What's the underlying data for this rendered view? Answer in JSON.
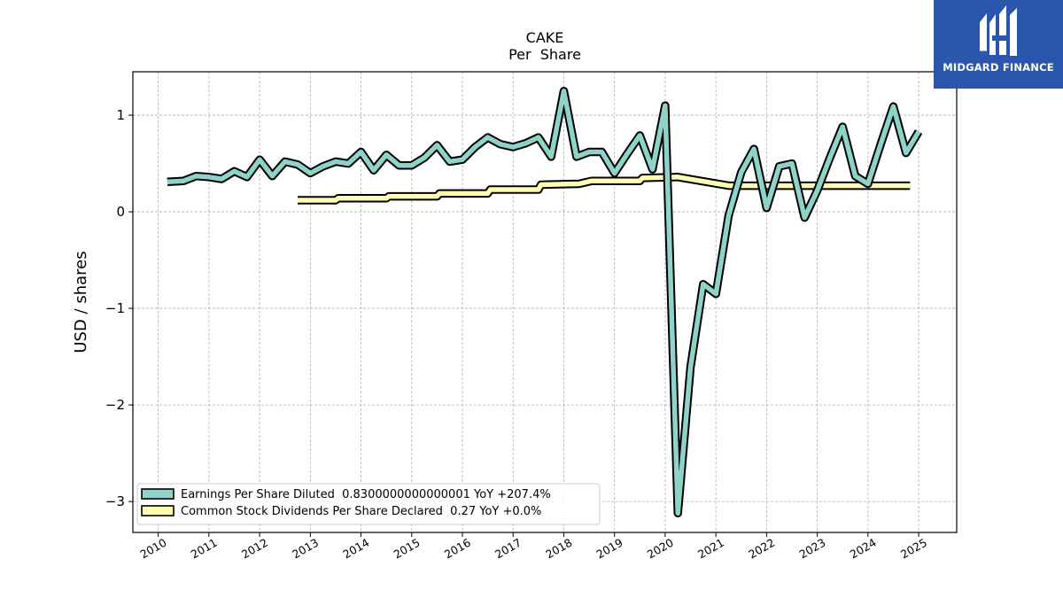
{
  "brand": {
    "name": "MIDGARD FINANCE",
    "color": "#2b56ad"
  },
  "chart_data": {
    "type": "line",
    "title": "CAKE",
    "subtitle": "Per  Share",
    "xlabel": "",
    "ylabel": "USD / shares",
    "xlim": [
      2009.5,
      2025.75
    ],
    "ylim": [
      -3.32,
      1.45
    ],
    "x_ticks": [
      2010,
      2011,
      2012,
      2013,
      2014,
      2015,
      2016,
      2017,
      2018,
      2019,
      2020,
      2021,
      2022,
      2023,
      2024,
      2025
    ],
    "x_tick_labels": [
      "2010",
      "2011",
      "2012",
      "2013",
      "2014",
      "2015",
      "2016",
      "2017",
      "2018",
      "2019",
      "2020",
      "2021",
      "2022",
      "2023",
      "2024",
      "2025"
    ],
    "y_ticks": [
      -3,
      -2,
      -1,
      0,
      1
    ],
    "y_tick_labels": [
      "−3",
      "−2",
      "−1",
      "0",
      "1"
    ],
    "grid": true,
    "legend_position": "lower-left",
    "series": [
      {
        "name": "Earnings Per Share Diluted  0.8300000000000001 YoY +207.4%",
        "color": "#8dd3c7",
        "x": [
          2010.18,
          2010.5,
          2010.75,
          2011.0,
          2011.25,
          2011.5,
          2011.75,
          2012.0,
          2012.25,
          2012.5,
          2012.75,
          2013.0,
          2013.25,
          2013.5,
          2013.75,
          2014.0,
          2014.25,
          2014.5,
          2014.75,
          2015.0,
          2015.25,
          2015.5,
          2015.75,
          2016.0,
          2016.25,
          2016.5,
          2016.75,
          2017.0,
          2017.25,
          2017.5,
          2017.75,
          2018.0,
          2018.25,
          2018.5,
          2018.75,
          2019.0,
          2019.25,
          2019.5,
          2019.75,
          2020.0,
          2020.25,
          2020.5,
          2020.75,
          2021.0,
          2021.25,
          2021.5,
          2021.75,
          2022.0,
          2022.25,
          2022.5,
          2022.75,
          2023.0,
          2023.25,
          2023.5,
          2023.75,
          2024.0,
          2024.25,
          2024.5,
          2024.75,
          2025.0
        ],
        "y": [
          0.31,
          0.32,
          0.37,
          0.36,
          0.34,
          0.42,
          0.36,
          0.54,
          0.37,
          0.52,
          0.49,
          0.4,
          0.47,
          0.52,
          0.5,
          0.62,
          0.43,
          0.59,
          0.48,
          0.48,
          0.56,
          0.69,
          0.52,
          0.54,
          0.67,
          0.77,
          0.7,
          0.67,
          0.71,
          0.77,
          0.57,
          1.25,
          0.57,
          0.62,
          0.62,
          0.4,
          0.6,
          0.79,
          0.44,
          1.1,
          -3.12,
          -1.61,
          -0.75,
          -0.85,
          -0.04,
          0.41,
          0.65,
          0.04,
          0.47,
          0.5,
          -0.06,
          0.22,
          0.56,
          0.88,
          0.37,
          0.29,
          0.7,
          1.09,
          0.61,
          0.83
        ]
      },
      {
        "name": "Common Stock Dividends Per Share Declared  0.27 YoY +0.0%",
        "color": "#ffffb3",
        "x": [
          2012.75,
          2013.5,
          2013.55,
          2014.5,
          2014.55,
          2015.5,
          2015.55,
          2016.5,
          2016.55,
          2017.5,
          2017.55,
          2018.3,
          2018.55,
          2019.5,
          2019.55,
          2020.25,
          2021.25,
          2022.0,
          2022.75,
          2023.5,
          2024.0,
          2024.83
        ],
        "y": [
          0.12,
          0.12,
          0.14,
          0.14,
          0.16,
          0.16,
          0.19,
          0.19,
          0.23,
          0.23,
          0.28,
          0.29,
          0.32,
          0.32,
          0.35,
          0.36,
          0.27,
          0.27,
          0.27,
          0.27,
          0.27,
          0.27
        ]
      }
    ]
  }
}
